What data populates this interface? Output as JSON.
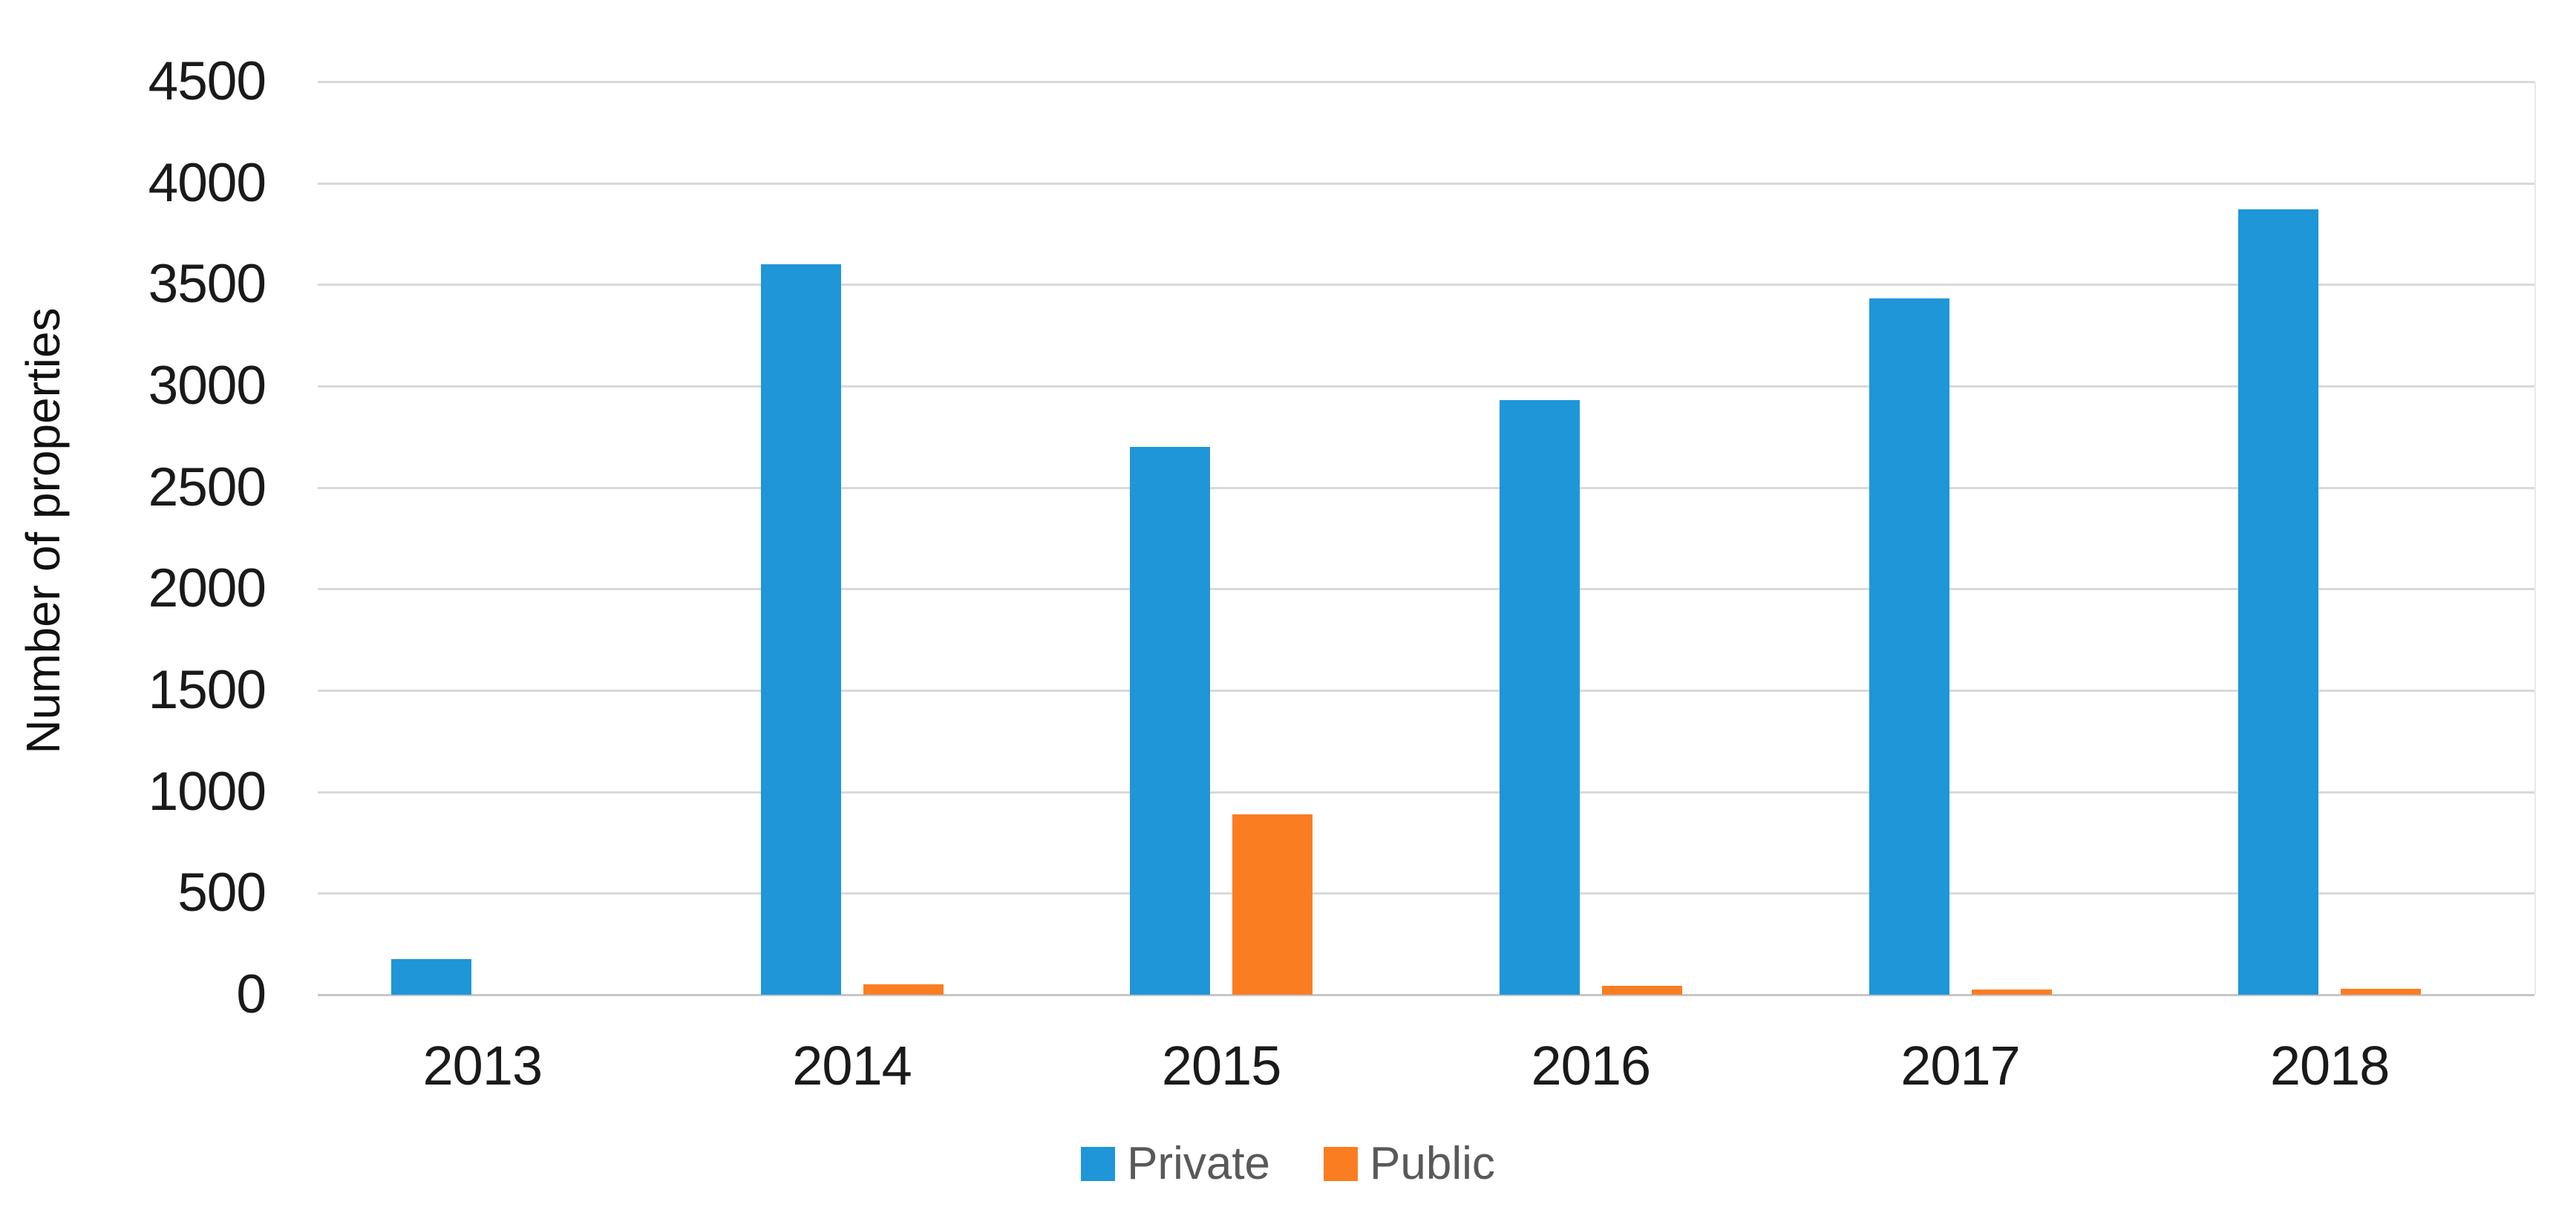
{
  "chart_data": {
    "type": "bar",
    "title": "",
    "categories": [
      "2013",
      "2014",
      "2015",
      "2016",
      "2017",
      "2018"
    ],
    "series": [
      {
        "name": "Private",
        "color": "#1E96D7",
        "values": [
          175,
          3600,
          2700,
          2930,
          3430,
          3870
        ]
      },
      {
        "name": "Public",
        "color": "#FA7D22",
        "values": [
          0,
          50,
          890,
          45,
          25,
          30
        ]
      }
    ],
    "xlabel": "",
    "ylabel": "Number of properties",
    "ylim": [
      0,
      4500
    ],
    "yticks": [
      0,
      500,
      1000,
      1500,
      2000,
      2500,
      3000,
      3500,
      4000,
      4500
    ],
    "grid": true,
    "legend_position": "bottom"
  },
  "colors": {
    "background": "#FFFFFF",
    "gridline": "#D9D9D9",
    "baseline": "#C6C6C6",
    "plot_right_edge": "#E9E9E9",
    "tick_text": "#1A1A1A",
    "legend_text": "#595959"
  }
}
